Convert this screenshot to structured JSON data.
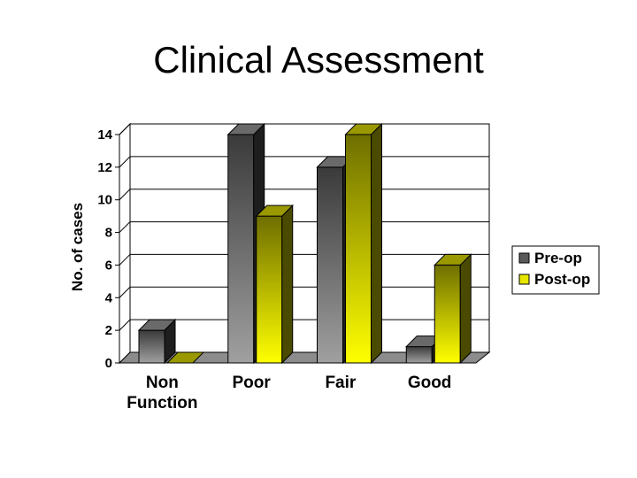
{
  "chart_data": {
    "type": "bar",
    "title": "Clinical Assessment",
    "xlabel": "",
    "ylabel": "No. of cases",
    "ylim": [
      0,
      14
    ],
    "yticks": [
      "0",
      "2",
      "4",
      "6",
      "8",
      "10",
      "12",
      "14"
    ],
    "categories": [
      [
        "Non",
        "Function"
      ],
      [
        "Poor"
      ],
      [
        "Fair"
      ],
      [
        "Good"
      ]
    ],
    "series": [
      {
        "name": "Pre-op",
        "values": [
          2,
          14,
          12,
          1
        ],
        "color": "#5a5a5a"
      },
      {
        "name": "Post-op",
        "values": [
          0,
          9,
          14,
          6
        ],
        "color": "#e6e600"
      }
    ],
    "grid": true,
    "legend_position": "right"
  }
}
